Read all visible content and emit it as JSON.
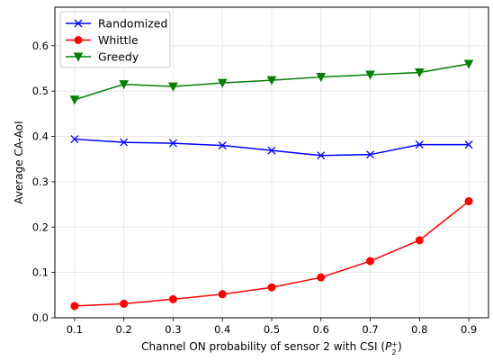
{
  "chart_data": {
    "type": "line",
    "xlabel": "Channel ON probability of sensor 2 with CSI",
    "xlabel_math": {
      "base": "P",
      "sub": "2",
      "sup": "+"
    },
    "ylabel": "Average CA-AoI",
    "x": [
      0.1,
      0.2,
      0.3,
      0.4,
      0.5,
      0.6,
      0.7,
      0.8,
      0.9
    ],
    "xlim": [
      0.06,
      0.94
    ],
    "ylim": [
      0.0,
      0.685
    ],
    "xticks": [
      0.1,
      0.2,
      0.3,
      0.4,
      0.5,
      0.6,
      0.7,
      0.8,
      0.9
    ],
    "yticks": [
      0.0,
      0.1,
      0.2,
      0.3,
      0.4,
      0.5,
      0.6
    ],
    "xtick_labels": [
      "0.1",
      "0.2",
      "0.3",
      "0.4",
      "0.5",
      "0.6",
      "0.7",
      "0.8",
      "0.9"
    ],
    "ytick_labels": [
      "0.0",
      "0.1",
      "0.2",
      "0.3",
      "0.4",
      "0.5",
      "0.6"
    ],
    "grid": true,
    "legend_position": "top-left",
    "series": [
      {
        "name": "Randomized",
        "color": "#0000ff",
        "marker": "x",
        "values": [
          0.394,
          0.387,
          0.385,
          0.38,
          0.369,
          0.358,
          0.36,
          0.382,
          0.382
        ]
      },
      {
        "name": "Whittle",
        "color": "#ff0000",
        "marker": "circle",
        "values": [
          0.026,
          0.031,
          0.041,
          0.052,
          0.067,
          0.089,
          0.125,
          0.171,
          0.257
        ]
      },
      {
        "name": "Greedy",
        "color": "#008000",
        "marker": "triangle-down",
        "values": [
          0.481,
          0.515,
          0.51,
          0.518,
          0.524,
          0.531,
          0.536,
          0.541,
          0.56
        ]
      }
    ]
  }
}
